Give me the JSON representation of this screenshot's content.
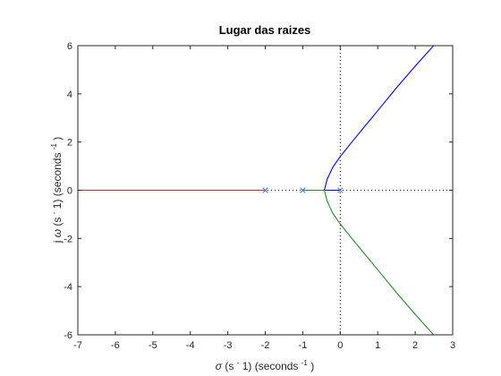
{
  "chart_data": {
    "type": "line",
    "title": "Lugar das raizes",
    "xlabel": {
      "sigma": "σ",
      "part1": " (s",
      "sup1": "-",
      "part2": "1) (seconds",
      "sup2": "-1",
      "part3": ")"
    },
    "ylabel": {
      "j": "j",
      "omega": "ω",
      "part1": " (s",
      "sup1": "-",
      "part2": "1) (seconds",
      "sup2": "-1",
      "part3": ")"
    },
    "xlim": [
      -7,
      3
    ],
    "ylim": [
      -6,
      6
    ],
    "xticks": [
      -7,
      -6,
      -5,
      -4,
      -3,
      -2,
      -1,
      0,
      1,
      2,
      3
    ],
    "yticks": [
      -6,
      -4,
      -2,
      0,
      2,
      4,
      6
    ],
    "xtick_labels": [
      "-7",
      "-6",
      "-5",
      "-4",
      "-3",
      "-2",
      "-1",
      "0",
      "1",
      "2",
      "3"
    ],
    "ytick_labels": [
      "-6",
      "-4",
      "-2",
      "0",
      "2",
      "4",
      "6"
    ],
    "grid": false,
    "poles": [
      {
        "x": -2,
        "y": 0
      },
      {
        "x": -1,
        "y": 0
      },
      {
        "x": 0,
        "y": 0
      }
    ],
    "series": [
      {
        "color": "#d62728",
        "x": [
          -7,
          -2
        ],
        "y": [
          0,
          0
        ]
      },
      {
        "color": "#0000ff",
        "x": [
          0,
          -0.423,
          -0.35,
          -0.2,
          0,
          0.3,
          0.6,
          1.0,
          1.5,
          2.0,
          2.55
        ],
        "y": [
          0,
          0,
          0.45,
          0.95,
          1.4,
          1.98,
          2.55,
          3.3,
          4.25,
          5.15,
          6.1
        ]
      },
      {
        "color": "#228b22",
        "x": [
          -1,
          -0.423,
          -0.35,
          -0.2,
          0,
          0.3,
          0.6,
          1.0,
          1.5,
          2.0,
          2.55
        ],
        "y": [
          0,
          0,
          -0.45,
          -0.95,
          -1.4,
          -1.98,
          -2.55,
          -3.3,
          -4.25,
          -5.15,
          -6.1
        ]
      }
    ],
    "reference_lines": [
      {
        "axis": "x",
        "value": 0,
        "style": "dotted"
      },
      {
        "axis": "y",
        "value": 0,
        "style": "dotted"
      }
    ],
    "pole_color": "#4a7bd8"
  }
}
